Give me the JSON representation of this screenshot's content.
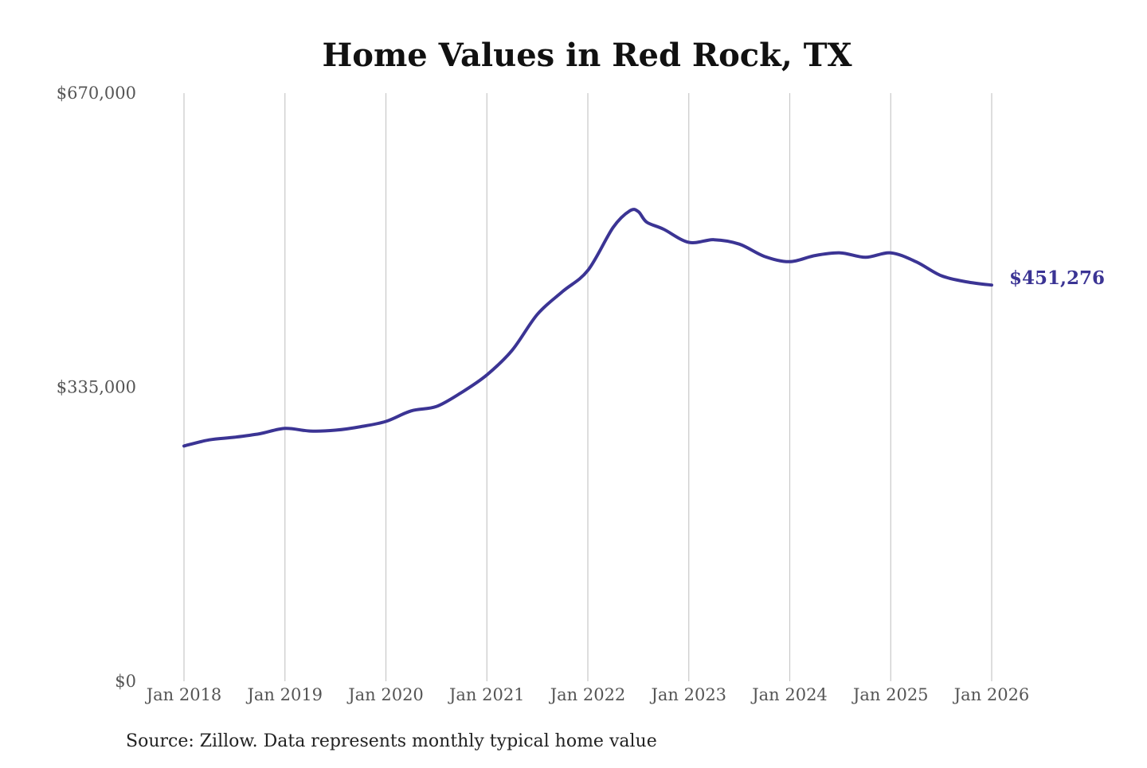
{
  "chart_data": {
    "type": "line",
    "title": "Home Values in Red Rock, TX",
    "xlabel": "",
    "ylabel": "",
    "x_ticks": [
      "Jan 2018",
      "Jan 2019",
      "Jan 2020",
      "Jan 2021",
      "Jan 2022",
      "Jan 2023",
      "Jan 2024",
      "Jan 2025",
      "Jan 2026"
    ],
    "y_ticks": [
      {
        "value": 670000,
        "label": "$670,000"
      },
      {
        "value": 335000,
        "label": "$335,000"
      },
      {
        "value": 0,
        "label": "$0"
      }
    ],
    "ylim": [
      0,
      670000
    ],
    "xlim": [
      "2018-01",
      "2026-01"
    ],
    "grid": "vertical",
    "series": [
      {
        "color": "#3b3494",
        "end_label": "$451,276",
        "points": [
          {
            "x": "2018-01",
            "y": 268000
          },
          {
            "x": "2018-04",
            "y": 275000
          },
          {
            "x": "2018-07",
            "y": 278000
          },
          {
            "x": "2018-10",
            "y": 282000
          },
          {
            "x": "2019-01",
            "y": 288000
          },
          {
            "x": "2019-04",
            "y": 285000
          },
          {
            "x": "2019-07",
            "y": 286000
          },
          {
            "x": "2019-10",
            "y": 290000
          },
          {
            "x": "2020-01",
            "y": 296000
          },
          {
            "x": "2020-04",
            "y": 308000
          },
          {
            "x": "2020-07",
            "y": 313000
          },
          {
            "x": "2020-10",
            "y": 329000
          },
          {
            "x": "2021-01",
            "y": 349000
          },
          {
            "x": "2021-04",
            "y": 377000
          },
          {
            "x": "2021-07",
            "y": 418000
          },
          {
            "x": "2021-10",
            "y": 444000
          },
          {
            "x": "2022-01",
            "y": 468000
          },
          {
            "x": "2022-04",
            "y": 517000
          },
          {
            "x": "2022-06",
            "y": 536000
          },
          {
            "x": "2022-07",
            "y": 535000
          },
          {
            "x": "2022-08",
            "y": 523000
          },
          {
            "x": "2022-10",
            "y": 515000
          },
          {
            "x": "2023-01",
            "y": 500000
          },
          {
            "x": "2023-04",
            "y": 503000
          },
          {
            "x": "2023-07",
            "y": 498000
          },
          {
            "x": "2023-10",
            "y": 484000
          },
          {
            "x": "2024-01",
            "y": 478000
          },
          {
            "x": "2024-04",
            "y": 485000
          },
          {
            "x": "2024-07",
            "y": 488000
          },
          {
            "x": "2024-10",
            "y": 483000
          },
          {
            "x": "2025-01",
            "y": 488000
          },
          {
            "x": "2025-04",
            "y": 478000
          },
          {
            "x": "2025-07",
            "y": 462000
          },
          {
            "x": "2025-10",
            "y": 455000
          },
          {
            "x": "2026-01",
            "y": 451276
          }
        ]
      }
    ],
    "source_note": "Source: Zillow. Data represents monthly typical home value"
  }
}
